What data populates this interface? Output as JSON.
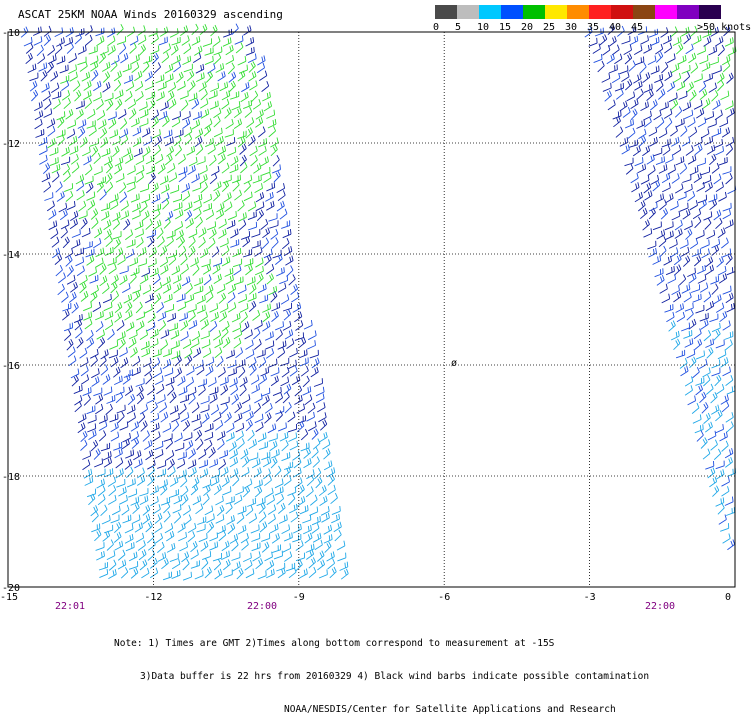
{
  "title": "ASCAT 25KM NOAA Winds 20160329 ascending",
  "legend": {
    "bins": [
      {
        "label": "0",
        "color": "#4a4a4a"
      },
      {
        "label": "5",
        "color": "#bdbdbd"
      },
      {
        "label": "10",
        "color": "#00c8ff"
      },
      {
        "label": "15",
        "color": "#0050ff"
      },
      {
        "label": "20",
        "color": "#00c000"
      },
      {
        "label": "25",
        "color": "#ffe800"
      },
      {
        "label": "30",
        "color": "#ff8c00"
      },
      {
        "label": "35",
        "color": "#ff2020"
      },
      {
        "label": "40",
        "color": "#d01010"
      },
      {
        "label": "45",
        "color": "#8b4513"
      },
      {
        "label": "",
        "color": "#ff00ff"
      },
      {
        "label": "",
        "color": "#8000c0"
      },
      {
        "label": ">50 knots",
        "color": "#2a0050"
      }
    ]
  },
  "map": {
    "lon_range": [
      -15,
      0
    ],
    "lat_range": [
      -20,
      -10
    ],
    "x_ticks": [
      "-15",
      "-12",
      "-9",
      "-6",
      "-3",
      "0"
    ],
    "y_ticks": [
      "-10",
      "-12",
      "-14",
      "-16",
      "-18",
      "-20"
    ],
    "time_labels": [
      "22:01",
      "22:00",
      "22:00"
    ],
    "island_label": "ø",
    "barb_colors": {
      "light_green": "#33dd33",
      "navy": "#1020a0",
      "blue": "#2050e0",
      "cyan": "#20a8e8"
    }
  },
  "notes": [
    "Note: 1) Times are GMT 2)Times along bottom correspond to measurement at -15S",
    "3)Data buffer is 22 hrs from 20160329 4) Black wind barbs indicate possible contamination",
    "NOAA/NESDIS/Center for Satellite Applications and Research"
  ]
}
